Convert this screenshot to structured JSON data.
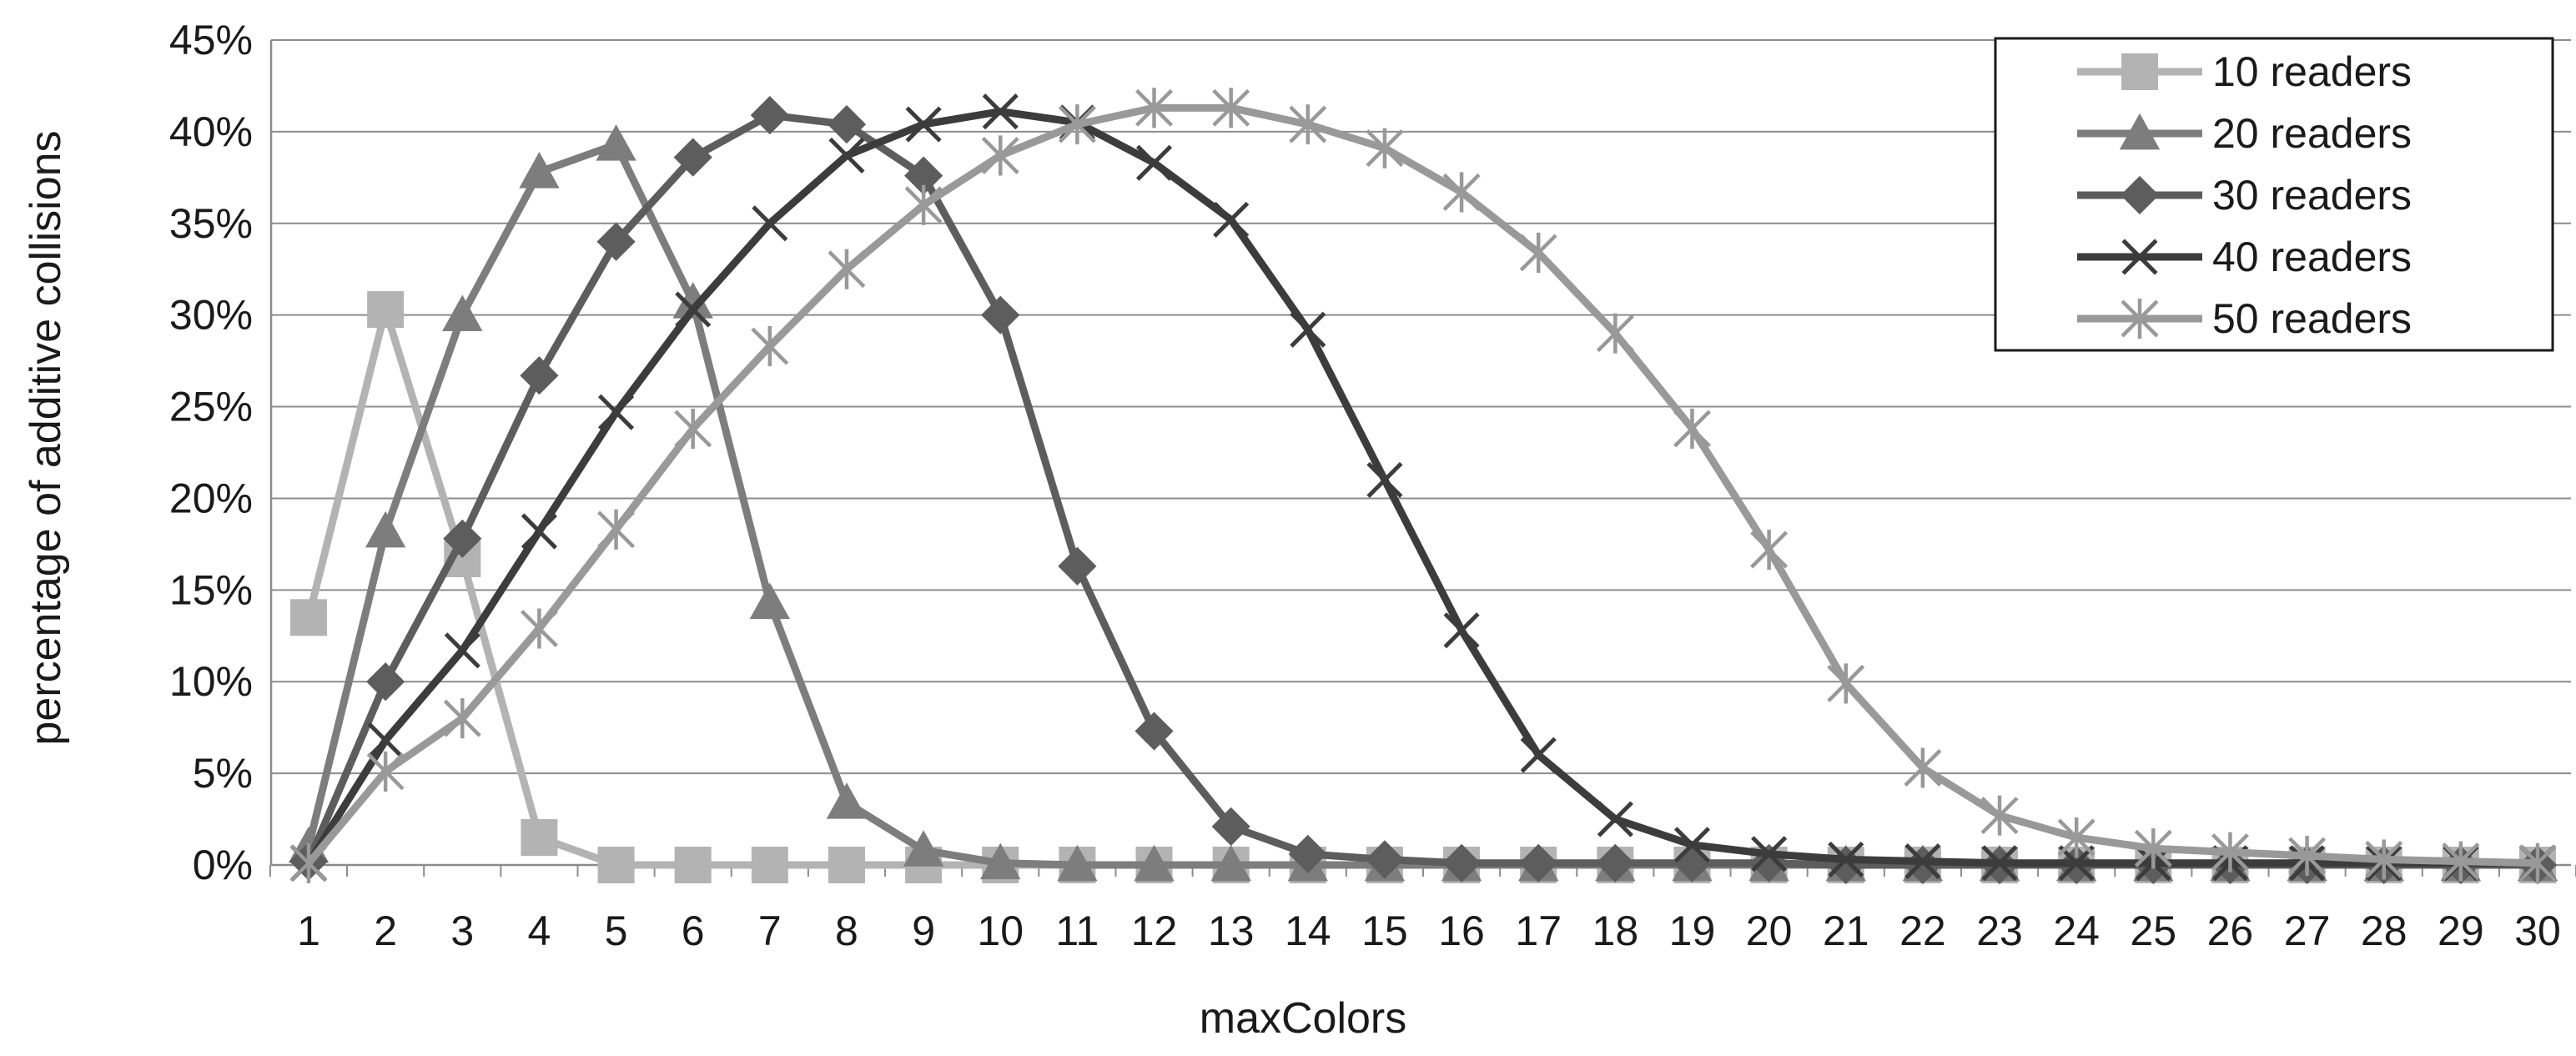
{
  "chart_data": {
    "type": "line",
    "xlabel": "maxColors",
    "ylabel": "percentage of additive collisions",
    "x": [
      1,
      2,
      3,
      4,
      5,
      6,
      7,
      8,
      9,
      10,
      11,
      12,
      13,
      14,
      15,
      16,
      17,
      18,
      19,
      20,
      21,
      22,
      23,
      24,
      25,
      26,
      27,
      28,
      29,
      30
    ],
    "xlim": [
      1,
      30
    ],
    "ylim": [
      0,
      45
    ],
    "y_ticks": [
      0,
      5,
      10,
      15,
      20,
      25,
      30,
      35,
      40,
      45
    ],
    "y_tick_format": "%",
    "grid": "horizontal",
    "legend_position": "top-right",
    "series": [
      {
        "name": "10 readers",
        "marker": "square",
        "color": "#b3b3b3",
        "values": [
          13.5,
          30.3,
          16.7,
          1.5,
          0,
          0,
          0,
          0,
          0,
          0,
          0,
          0,
          0,
          0,
          0,
          0,
          0,
          0,
          0,
          0,
          0,
          0,
          0,
          0,
          0,
          0,
          0,
          0,
          0,
          0
        ]
      },
      {
        "name": "20 readers",
        "marker": "triangle",
        "color": "#7d7d7d",
        "values": [
          1.0,
          18.2,
          30.0,
          37.8,
          39.3,
          30.7,
          14.3,
          3.4,
          0.8,
          0.1,
          0,
          0,
          0,
          0,
          0,
          0,
          0,
          0,
          0,
          0,
          0,
          0,
          0,
          0,
          0,
          0,
          0,
          0,
          0,
          0
        ]
      },
      {
        "name": "30 readers",
        "marker": "diamond",
        "color": "#5d5d5d",
        "values": [
          0.2,
          10.0,
          17.8,
          26.7,
          34.0,
          38.6,
          40.9,
          40.4,
          37.6,
          30.0,
          16.3,
          7.3,
          2.1,
          0.6,
          0.3,
          0.1,
          0.1,
          0.1,
          0.1,
          0.1,
          0,
          0,
          0,
          0,
          0,
          0,
          0,
          0,
          0,
          0
        ]
      },
      {
        "name": "40 readers",
        "marker": "x",
        "color": "#3c3c3c",
        "values": [
          0.1,
          6.8,
          11.7,
          18.2,
          24.7,
          30.3,
          35.0,
          38.7,
          40.4,
          41.1,
          40.5,
          38.3,
          35.2,
          29.2,
          21.0,
          12.8,
          6.0,
          2.5,
          1.1,
          0.6,
          0.3,
          0.2,
          0.1,
          0.1,
          0.1,
          0.1,
          0.1,
          0.1,
          0.1,
          0.1
        ]
      },
      {
        "name": "50 readers",
        "marker": "asterisk",
        "color": "#999999",
        "values": [
          0.1,
          5.1,
          8.0,
          12.9,
          18.3,
          23.8,
          28.3,
          32.5,
          36.0,
          38.7,
          40.4,
          41.3,
          41.3,
          40.4,
          39.1,
          36.7,
          33.4,
          29.0,
          23.8,
          17.2,
          9.9,
          5.3,
          2.7,
          1.5,
          0.9,
          0.7,
          0.5,
          0.3,
          0.2,
          0.1
        ]
      }
    ]
  }
}
